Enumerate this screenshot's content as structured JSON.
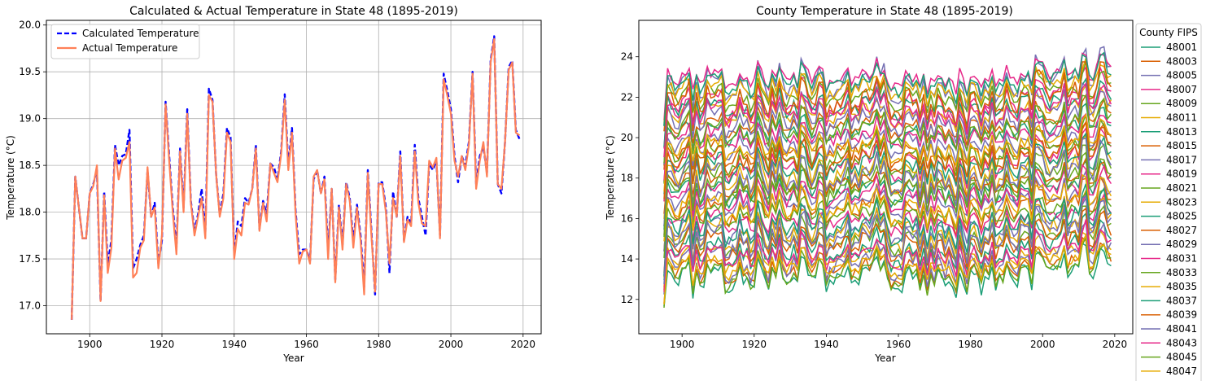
{
  "chart_data": [
    {
      "type": "line",
      "title": "Calculated & Actual Temperature in State 48 (1895-2019)",
      "xlabel": "Year",
      "ylabel": "Temperature (°C)",
      "xlim": [
        1888,
        2025
      ],
      "ylim": [
        16.7,
        20.05
      ],
      "xticks": [
        1900,
        1920,
        1940,
        1960,
        1980,
        2000,
        2020
      ],
      "yticks": [
        17.0,
        17.5,
        18.0,
        18.5,
        19.0,
        19.5,
        20.0
      ],
      "ytick_decimals": 1,
      "grid": true,
      "legend_position": "top-left",
      "x_start": 1895,
      "series": [
        {
          "name": "Calculated Temperature",
          "color": "#0000ff",
          "style": "dashed",
          "values": [
            16.85,
            18.38,
            18.05,
            17.72,
            17.72,
            18.2,
            18.3,
            18.45,
            17.05,
            18.22,
            17.45,
            17.7,
            18.72,
            18.5,
            18.6,
            18.62,
            18.88,
            17.4,
            17.5,
            17.65,
            17.75,
            18.45,
            17.95,
            18.1,
            17.45,
            17.7,
            19.18,
            18.6,
            18.05,
            17.62,
            18.68,
            18.05,
            19.1,
            18.12,
            17.8,
            17.98,
            18.25,
            17.78,
            19.32,
            19.2,
            18.4,
            17.98,
            18.2,
            18.9,
            18.8,
            17.55,
            17.9,
            17.85,
            18.15,
            18.1,
            18.25,
            18.72,
            17.82,
            18.12,
            17.98,
            18.52,
            18.48,
            18.35,
            18.65,
            19.26,
            18.5,
            18.9,
            18.02,
            17.55,
            17.6,
            17.6,
            17.48,
            18.35,
            18.45,
            18.2,
            18.38,
            17.58,
            18.25,
            17.28,
            18.08,
            17.65,
            18.32,
            18.15,
            17.68,
            18.08,
            17.75,
            17.2,
            18.45,
            17.8,
            17.12,
            18.32,
            18.32,
            18.05,
            17.35,
            18.22,
            17.95,
            18.65,
            17.7,
            17.95,
            17.88,
            18.72,
            18.15,
            17.95,
            17.75,
            18.52,
            18.45,
            18.55,
            17.75,
            19.48,
            19.3,
            19.1,
            18.6,
            18.32,
            18.6,
            18.5,
            18.75,
            19.5,
            18.3,
            18.6,
            18.7,
            18.42,
            19.62,
            19.88,
            18.3,
            18.2,
            18.75,
            19.55,
            19.62,
            18.88,
            18.78
          ],
          "data_name": "calculated-temperature-line"
        },
        {
          "name": "Actual Temperature",
          "color": "#ff8057",
          "style": "solid",
          "values": [
            16.85,
            18.38,
            18.05,
            17.72,
            17.72,
            18.2,
            18.28,
            18.5,
            17.05,
            18.18,
            17.35,
            17.62,
            18.68,
            18.35,
            18.55,
            18.58,
            18.75,
            17.3,
            17.35,
            17.62,
            17.7,
            18.48,
            17.95,
            18.05,
            17.4,
            17.75,
            19.15,
            18.55,
            18.0,
            17.55,
            18.65,
            18.0,
            19.05,
            18.1,
            17.75,
            17.95,
            18.15,
            17.72,
            19.25,
            19.18,
            18.4,
            17.95,
            18.15,
            18.85,
            18.75,
            17.5,
            17.82,
            17.75,
            18.1,
            18.08,
            18.25,
            18.68,
            17.8,
            18.1,
            17.9,
            18.52,
            18.42,
            18.32,
            18.62,
            19.2,
            18.45,
            18.85,
            17.98,
            17.45,
            17.58,
            17.6,
            17.45,
            18.38,
            18.45,
            18.2,
            18.35,
            17.5,
            18.25,
            17.25,
            18.05,
            17.6,
            18.3,
            18.12,
            17.62,
            18.05,
            17.7,
            17.12,
            18.42,
            17.75,
            17.15,
            18.3,
            18.3,
            18.0,
            17.45,
            18.15,
            17.95,
            18.6,
            17.68,
            17.92,
            17.85,
            18.65,
            18.1,
            17.88,
            17.85,
            18.55,
            18.48,
            18.58,
            17.72,
            19.42,
            19.25,
            19.05,
            18.55,
            18.38,
            18.6,
            18.45,
            18.72,
            19.48,
            18.25,
            18.55,
            18.75,
            18.38,
            19.6,
            19.85,
            18.3,
            18.25,
            18.75,
            19.52,
            19.6,
            18.85,
            18.82
          ],
          "data_name": "actual-temperature-line"
        }
      ]
    },
    {
      "type": "line",
      "title": "County Temperature in State 48 (1895-2019)",
      "xlabel": "Year",
      "ylabel": "Temperature (°C)",
      "xlim": [
        1888,
        2025
      ],
      "ylim": [
        10.3,
        25.8
      ],
      "xticks": [
        1900,
        1920,
        1940,
        1960,
        1980,
        2000,
        2020
      ],
      "yticks": [
        12,
        14,
        16,
        18,
        20,
        22,
        24
      ],
      "ytick_decimals": 0,
      "grid": false,
      "legend_position": "right",
      "legend_title": "County FIPS",
      "x_start": 1895,
      "county_offset_range": [
        13.3,
        23.3
      ],
      "palette": [
        "#1b9e77",
        "#d95f02",
        "#7570b3",
        "#e7298a",
        "#66a61e",
        "#e6ab02"
      ],
      "year_anomalies": [
        0.0,
        0.55,
        0.3,
        -0.1,
        -0.1,
        0.3,
        0.55,
        0.9,
        -0.85,
        0.35,
        -0.4,
        -0.2,
        0.75,
        0.45,
        0.5,
        0.6,
        0.7,
        -0.6,
        -0.5,
        -0.3,
        -0.25,
        0.5,
        -0.05,
        0.1,
        -0.5,
        -0.25,
        1.1,
        0.55,
        -0.05,
        -0.4,
        0.65,
        0.05,
        1.0,
        0.15,
        -0.2,
        -0.05,
        0.25,
        -0.25,
        1.2,
        1.1,
        0.4,
        -0.05,
        0.2,
        0.85,
        0.75,
        -0.5,
        -0.1,
        -0.2,
        0.15,
        0.1,
        0.3,
        0.75,
        -0.15,
        0.15,
        -0.05,
        0.55,
        0.5,
        0.35,
        0.65,
        1.2,
        0.5,
        0.9,
        0.05,
        -0.55,
        -0.45,
        -0.45,
        -0.55,
        0.4,
        0.5,
        0.2,
        0.4,
        -0.45,
        0.3,
        -0.75,
        0.1,
        -0.4,
        0.35,
        0.15,
        -0.35,
        0.1,
        -0.3,
        -0.85,
        0.45,
        -0.2,
        -0.85,
        0.35,
        0.35,
        0.05,
        -0.55,
        0.2,
        -0.05,
        0.65,
        -0.35,
        -0.05,
        -0.1,
        0.7,
        0.15,
        -0.1,
        -0.2,
        0.55,
        0.5,
        0.6,
        -0.3,
        1.4,
        1.25,
        1.05,
        0.55,
        0.35,
        0.6,
        0.5,
        0.75,
        1.5,
        0.3,
        0.6,
        0.75,
        0.45,
        1.6,
        1.85,
        0.3,
        0.25,
        0.75,
        1.55,
        1.6,
        0.85,
        0.8
      ],
      "series_names": [
        "48001",
        "48003",
        "48005",
        "48007",
        "48009",
        "48011",
        "48013",
        "48015",
        "48017",
        "48019",
        "48021",
        "48023",
        "48025",
        "48027",
        "48029",
        "48031",
        "48033",
        "48035",
        "48037",
        "48039",
        "48041",
        "48043",
        "48045",
        "48047"
      ]
    }
  ]
}
